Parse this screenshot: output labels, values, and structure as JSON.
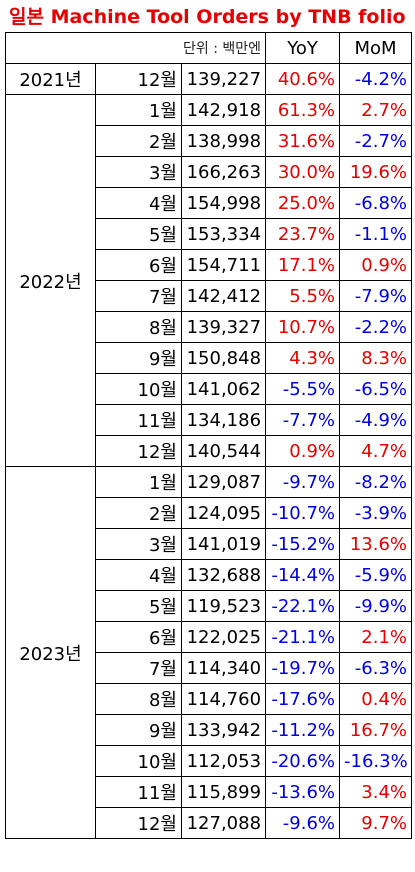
{
  "title": "일본 Machine Tool Orders by TNB folio",
  "header": {
    "unit": "단위 : 백만엔",
    "yoy": "YoY",
    "mom": "MoM"
  },
  "years": [
    {
      "year": "2021년",
      "rows": [
        {
          "month": "12월",
          "value": "139,227",
          "yoy": "40.6%",
          "mom": "-4.2%"
        }
      ]
    },
    {
      "year": "2022년",
      "rows": [
        {
          "month": "1월",
          "value": "142,918",
          "yoy": "61.3%",
          "mom": "2.7%"
        },
        {
          "month": "2월",
          "value": "138,998",
          "yoy": "31.6%",
          "mom": "-2.7%"
        },
        {
          "month": "3월",
          "value": "166,263",
          "yoy": "30.0%",
          "mom": "19.6%"
        },
        {
          "month": "4월",
          "value": "154,998",
          "yoy": "25.0%",
          "mom": "-6.8%"
        },
        {
          "month": "5월",
          "value": "153,334",
          "yoy": "23.7%",
          "mom": "-1.1%"
        },
        {
          "month": "6월",
          "value": "154,711",
          "yoy": "17.1%",
          "mom": "0.9%"
        },
        {
          "month": "7월",
          "value": "142,412",
          "yoy": "5.5%",
          "mom": "-7.9%"
        },
        {
          "month": "8월",
          "value": "139,327",
          "yoy": "10.7%",
          "mom": "-2.2%"
        },
        {
          "month": "9월",
          "value": "150,848",
          "yoy": "4.3%",
          "mom": "8.3%"
        },
        {
          "month": "10월",
          "value": "141,062",
          "yoy": "-5.5%",
          "mom": "-6.5%"
        },
        {
          "month": "11월",
          "value": "134,186",
          "yoy": "-7.7%",
          "mom": "-4.9%"
        },
        {
          "month": "12월",
          "value": "140,544",
          "yoy": "0.9%",
          "mom": "4.7%"
        }
      ]
    },
    {
      "year": "2023년",
      "rows": [
        {
          "month": "1월",
          "value": "129,087",
          "yoy": "-9.7%",
          "mom": "-8.2%"
        },
        {
          "month": "2월",
          "value": "124,095",
          "yoy": "-10.7%",
          "mom": "-3.9%"
        },
        {
          "month": "3월",
          "value": "141,019",
          "yoy": "-15.2%",
          "mom": "13.6%"
        },
        {
          "month": "4월",
          "value": "132,688",
          "yoy": "-14.4%",
          "mom": "-5.9%"
        },
        {
          "month": "5월",
          "value": "119,523",
          "yoy": "-22.1%",
          "mom": "-9.9%"
        },
        {
          "month": "6월",
          "value": "122,025",
          "yoy": "-21.1%",
          "mom": "2.1%"
        },
        {
          "month": "7월",
          "value": "114,340",
          "yoy": "-19.7%",
          "mom": "-6.3%"
        },
        {
          "month": "8월",
          "value": "114,760",
          "yoy": "-17.6%",
          "mom": "0.4%"
        },
        {
          "month": "9월",
          "value": "133,942",
          "yoy": "-11.2%",
          "mom": "16.7%"
        },
        {
          "month": "10월",
          "value": "112,053",
          "yoy": "-20.6%",
          "mom": "-16.3%"
        },
        {
          "month": "11월",
          "value": "115,899",
          "yoy": "-13.6%",
          "mom": "3.4%"
        },
        {
          "month": "12월",
          "value": "127,088",
          "yoy": "-9.6%",
          "mom": "9.7%"
        }
      ]
    }
  ],
  "colors": {
    "positive": "#e60000",
    "negative": "#0000e6",
    "title": "#e60000"
  }
}
